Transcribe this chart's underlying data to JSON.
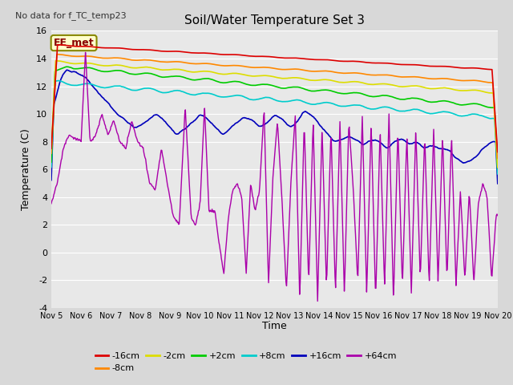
{
  "title": "Soil/Water Temperature Set 3",
  "no_data_text": "No data for f_TC_temp23",
  "xlabel": "Time",
  "ylabel": "Temperature (C)",
  "ylim": [
    -4,
    16
  ],
  "yticks": [
    -4,
    -2,
    0,
    2,
    4,
    6,
    8,
    10,
    12,
    14,
    16
  ],
  "xlim": [
    0,
    15
  ],
  "xtick_labels": [
    "Nov 5",
    "Nov 6",
    "Nov 7",
    "Nov 8",
    "Nov 9",
    "Nov 10",
    "Nov 11",
    "Nov 12",
    "Nov 13",
    "Nov 14",
    "Nov 15",
    "Nov 16",
    "Nov 17",
    "Nov 18",
    "Nov 19",
    "Nov 20"
  ],
  "background_color": "#d8d8d8",
  "plot_bg_color": "#e8e8e8",
  "annotation_label": "EE_met",
  "annotation_color": "#880000",
  "annotation_bg": "#ffffcc",
  "annotation_edge": "#888800",
  "series": {
    "m16cm": {
      "label": "-16cm",
      "color": "#dd0000"
    },
    "m8cm": {
      "label": "-8cm",
      "color": "#ff8800"
    },
    "m2cm": {
      "label": "-2cm",
      "color": "#dddd00"
    },
    "p2cm": {
      "label": "+2cm",
      "color": "#00cc00"
    },
    "p8cm": {
      "label": "+8cm",
      "color": "#00cccc"
    },
    "p16cm": {
      "label": "+16cm",
      "color": "#0000bb"
    },
    "p64cm": {
      "label": "+64cm",
      "color": "#aa00aa"
    }
  },
  "figsize": [
    6.4,
    4.8
  ],
  "dpi": 100
}
